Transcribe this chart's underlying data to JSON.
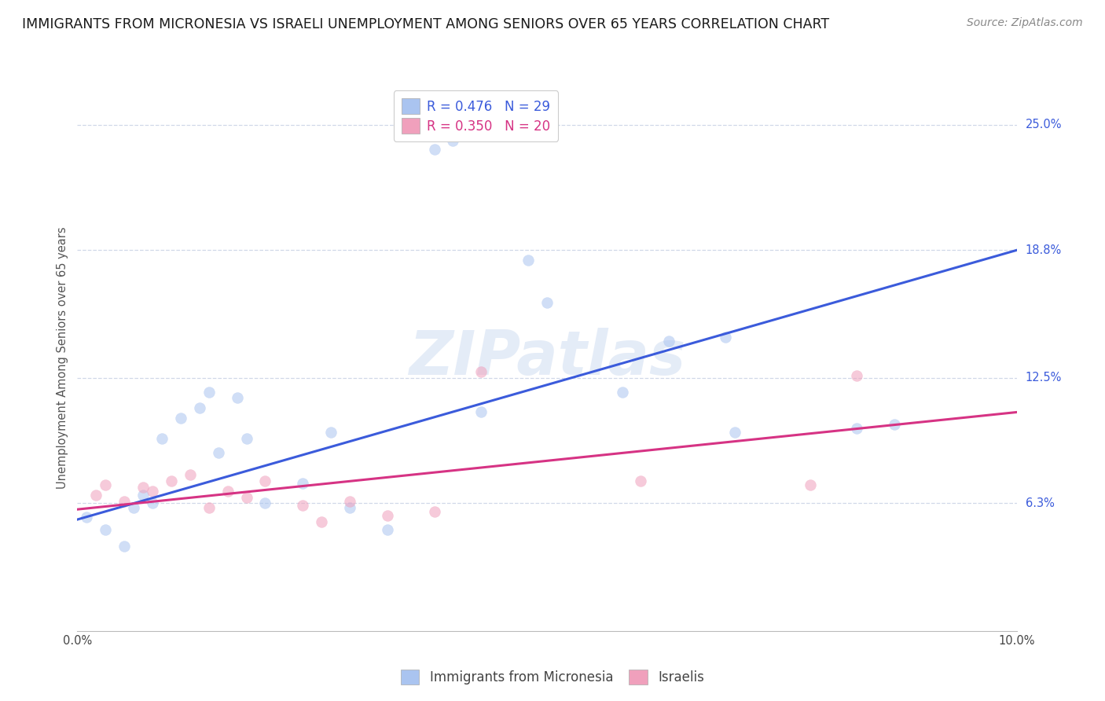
{
  "title": "IMMIGRANTS FROM MICRONESIA VS ISRAELI UNEMPLOYMENT AMONG SENIORS OVER 65 YEARS CORRELATION CHART",
  "source": "Source: ZipAtlas.com",
  "ylabel": "Unemployment Among Seniors over 65 years",
  "xlim": [
    0.0,
    0.1
  ],
  "ylim": [
    0.0,
    0.27
  ],
  "ytick_labels_right": [
    "25.0%",
    "18.8%",
    "12.5%",
    "6.3%"
  ],
  "ytick_values_right": [
    0.25,
    0.188,
    0.125,
    0.063
  ],
  "watermark": "ZIPatlas",
  "blue_R": 0.476,
  "blue_N": 29,
  "pink_R": 0.35,
  "pink_N": 20,
  "blue_label": "Immigrants from Micronesia",
  "pink_label": "Israelis",
  "blue_scatter_x": [
    0.038,
    0.04,
    0.001,
    0.003,
    0.005,
    0.007,
    0.009,
    0.011,
    0.013,
    0.006,
    0.008,
    0.015,
    0.018,
    0.014,
    0.017,
    0.02,
    0.024,
    0.027,
    0.048,
    0.05,
    0.058,
    0.063,
    0.069,
    0.07,
    0.029,
    0.033,
    0.043,
    0.083,
    0.087
  ],
  "blue_scatter_y": [
    0.238,
    0.242,
    0.056,
    0.05,
    0.042,
    0.067,
    0.095,
    0.105,
    0.11,
    0.061,
    0.063,
    0.088,
    0.095,
    0.118,
    0.115,
    0.063,
    0.073,
    0.098,
    0.183,
    0.162,
    0.118,
    0.143,
    0.145,
    0.098,
    0.061,
    0.05,
    0.108,
    0.1,
    0.102
  ],
  "pink_scatter_x": [
    0.002,
    0.003,
    0.005,
    0.007,
    0.008,
    0.01,
    0.012,
    0.014,
    0.016,
    0.018,
    0.02,
    0.024,
    0.026,
    0.029,
    0.033,
    0.038,
    0.043,
    0.06,
    0.078,
    0.083
  ],
  "pink_scatter_y": [
    0.067,
    0.072,
    0.064,
    0.071,
    0.069,
    0.074,
    0.077,
    0.061,
    0.069,
    0.066,
    0.074,
    0.062,
    0.054,
    0.064,
    0.057,
    0.059,
    0.128,
    0.074,
    0.072,
    0.126
  ],
  "blue_line_x": [
    0.0,
    0.1
  ],
  "blue_line_y": [
    0.055,
    0.188
  ],
  "pink_line_x": [
    0.0,
    0.1
  ],
  "pink_line_y": [
    0.06,
    0.108
  ],
  "blue_color": "#aac4f0",
  "pink_color": "#f0a0bc",
  "blue_line_color": "#3b5bdb",
  "pink_line_color": "#d63384",
  "grid_color": "#d0d8e8",
  "bg_color": "#ffffff",
  "title_fontsize": 12.5,
  "axis_label_fontsize": 10.5,
  "tick_fontsize": 10.5,
  "legend_fontsize": 12,
  "scatter_size": 100,
  "scatter_alpha": 0.55
}
